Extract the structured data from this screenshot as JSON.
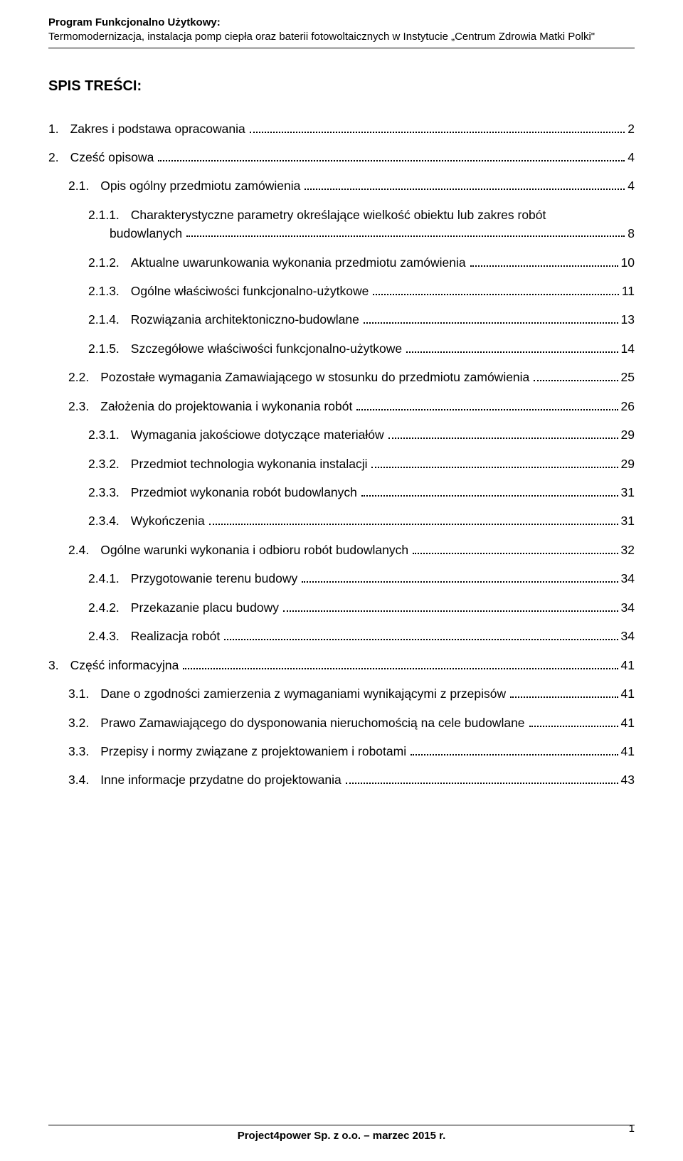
{
  "header": {
    "title_bold": "Program Funkcjonalno Użytkowy:",
    "subtitle": "Termomodernizacja, instalacja pomp ciepła oraz baterii fotowoltaicznych w Instytucie „Centrum Zdrowia Matki Polki\""
  },
  "toc_title": "SPIS TREŚCI:",
  "toc": [
    {
      "num": "1.",
      "label": "Zakres i podstawa opracowania",
      "page": "2",
      "indent": 0
    },
    {
      "num": "2.",
      "label": "Cześć opisowa",
      "page": "4",
      "indent": 0
    },
    {
      "num": "2.1.",
      "label": "Opis ogólny przedmiotu zamówienia",
      "page": "4",
      "indent": 1
    },
    {
      "num": "2.1.1.",
      "label_a": "Charakterystyczne parametry określające wielkość obiektu lub zakres robót",
      "label_b": "budowlanych",
      "page": "8",
      "indent": 2,
      "multiline": true
    },
    {
      "num": "2.1.2.",
      "label": "Aktualne uwarunkowania wykonania przedmiotu zamówienia",
      "page": "10",
      "indent": 2
    },
    {
      "num": "2.1.3.",
      "label": "Ogólne właściwości funkcjonalno-użytkowe",
      "page": "11",
      "indent": 2
    },
    {
      "num": "2.1.4.",
      "label": "Rozwiązania architektoniczno-budowlane",
      "page": "13",
      "indent": 2
    },
    {
      "num": "2.1.5.",
      "label": "Szczegółowe właściwości funkcjonalno-użytkowe",
      "page": "14",
      "indent": 2
    },
    {
      "num": "2.2.",
      "label": "Pozostałe wymagania Zamawiającego w stosunku do przedmiotu zamówienia",
      "page": "25",
      "indent": 1
    },
    {
      "num": "2.3.",
      "label": "Założenia do projektowania i wykonania robót",
      "page": "26",
      "indent": 1
    },
    {
      "num": "2.3.1.",
      "label": "Wymagania jakościowe dotyczące materiałów",
      "page": "29",
      "indent": 2
    },
    {
      "num": "2.3.2.",
      "label": "Przedmiot technologia wykonania instalacji",
      "page": "29",
      "indent": 2
    },
    {
      "num": "2.3.3.",
      "label": "Przedmiot wykonania robót budowlanych",
      "page": "31",
      "indent": 2
    },
    {
      "num": "2.3.4.",
      "label": "Wykończenia",
      "page": "31",
      "indent": 2
    },
    {
      "num": "2.4.",
      "label": "Ogólne warunki wykonania i odbioru robót budowlanych",
      "page": "32",
      "indent": 1
    },
    {
      "num": "2.4.1.",
      "label": "Przygotowanie terenu budowy",
      "page": "34",
      "indent": 2
    },
    {
      "num": "2.4.2.",
      "label": "Przekazanie placu budowy",
      "page": "34",
      "indent": 2
    },
    {
      "num": "2.4.3.",
      "label": "Realizacja robót",
      "page": "34",
      "indent": 2
    },
    {
      "num": "3.",
      "label": "Część informacyjna",
      "page": "41",
      "indent": 0
    },
    {
      "num": "3.1.",
      "label": "Dane o zgodności zamierzenia z wymaganiami wynikającymi z przepisów",
      "page": "41",
      "indent": 1
    },
    {
      "num": "3.2.",
      "label": "Prawo Zamawiającego do dysponowania nieruchomością na cele budowlane",
      "page": "41",
      "indent": 1
    },
    {
      "num": "3.3.",
      "label": "Przepisy i normy związane z projektowaniem i robotami",
      "page": "41",
      "indent": 1
    },
    {
      "num": "3.4.",
      "label": "Inne informacje przydatne do projektowania",
      "page": "43",
      "indent": 1
    }
  ],
  "footer": {
    "center": "Project4power Sp. z o.o. – marzec 2015 r.",
    "page": "1"
  }
}
